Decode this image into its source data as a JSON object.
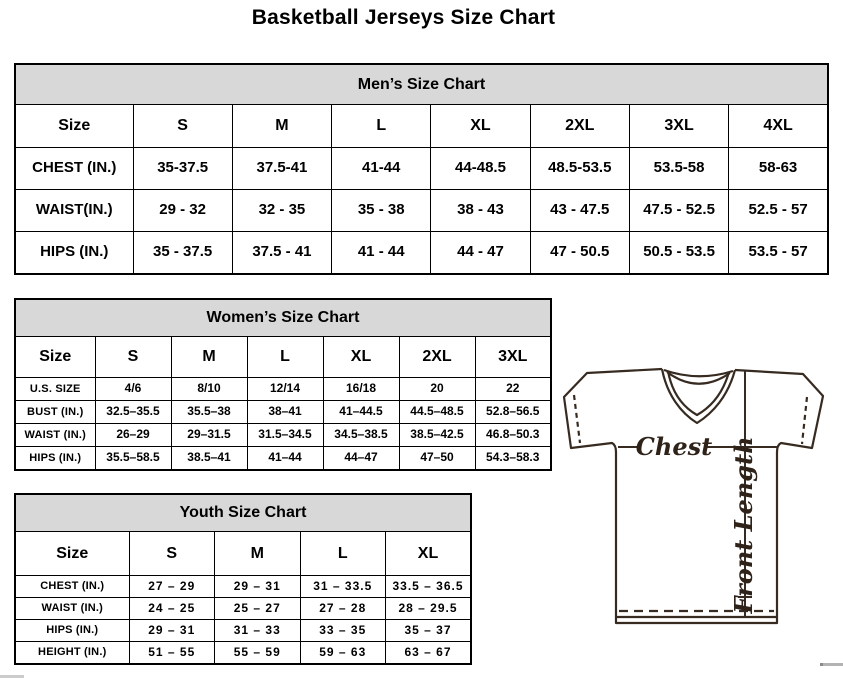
{
  "page": {
    "title": "Basketball Jerseys Size Chart"
  },
  "tables": {
    "men": {
      "caption": "Men’s Size Chart",
      "header": [
        "Size",
        "S",
        "M",
        "L",
        "XL",
        "2XL",
        "3XL",
        "4XL"
      ],
      "rows": [
        {
          "label": "CHEST (IN.)",
          "values": [
            "35-37.5",
            "37.5-41",
            "41-44",
            "44-48.5",
            "48.5-53.5",
            "53.5-58",
            "58-63"
          ]
        },
        {
          "label": "WAIST(IN.)",
          "values": [
            "29 - 32",
            "32 - 35",
            "35 - 38",
            "38 - 43",
            "43 - 47.5",
            "47.5 - 52.5",
            "52.5 - 57"
          ]
        },
        {
          "label": "HIPS (IN.)",
          "values": [
            "35 - 37.5",
            "37.5 - 41",
            "41 - 44",
            "44 - 47",
            "47 - 50.5",
            "50.5 - 53.5",
            "53.5 - 57"
          ]
        }
      ]
    },
    "women": {
      "caption": "Women’s Size Chart",
      "header": [
        "Size",
        "S",
        "M",
        "L",
        "XL",
        "2XL",
        "3XL"
      ],
      "rows": [
        {
          "label": "U.S. SIZE",
          "values": [
            "4/6",
            "8/10",
            "12/14",
            "16/18",
            "20",
            "22"
          ]
        },
        {
          "label": "BUST (IN.)",
          "values": [
            "32.5–35.5",
            "35.5–38",
            "38–41",
            "41–44.5",
            "44.5–48.5",
            "52.8–56.5"
          ]
        },
        {
          "label": "WAIST (IN.)",
          "values": [
            "26–29",
            "29–31.5",
            "31.5–34.5",
            "34.5–38.5",
            "38.5–42.5",
            "46.8–50.3"
          ]
        },
        {
          "label": "HIPS (IN.)",
          "values": [
            "35.5–58.5",
            "38.5–41",
            "41–44",
            "44–47",
            "47–50",
            "54.3–58.3"
          ]
        }
      ]
    },
    "youth": {
      "caption": "Youth Size Chart",
      "header": [
        "Size",
        "S",
        "M",
        "L",
        "XL"
      ],
      "rows": [
        {
          "label": "CHEST (IN.)",
          "values": [
            "27 – 29",
            "29 – 31",
            "31 – 33.5",
            "33.5 – 36.5"
          ]
        },
        {
          "label": "WAIST (IN.)",
          "values": [
            "24 – 25",
            "25 – 27",
            "27 – 28",
            "28 – 29.5"
          ]
        },
        {
          "label": "HIPS (IN.)",
          "values": [
            "29 – 31",
            "31 – 33",
            "33 – 35",
            "35 – 37"
          ]
        },
        {
          "label": "HEIGHT (IN.)",
          "values": [
            "51 – 55",
            "55 – 59",
            "59 – 63",
            "63 – 67"
          ]
        }
      ]
    }
  },
  "diagram": {
    "chest_label": "Chest",
    "front_length_label": "Front Length"
  },
  "colors": {
    "table_caption_bg": "#d8d8d8",
    "table_border": "#000000",
    "jersey_line": "#372b21"
  }
}
